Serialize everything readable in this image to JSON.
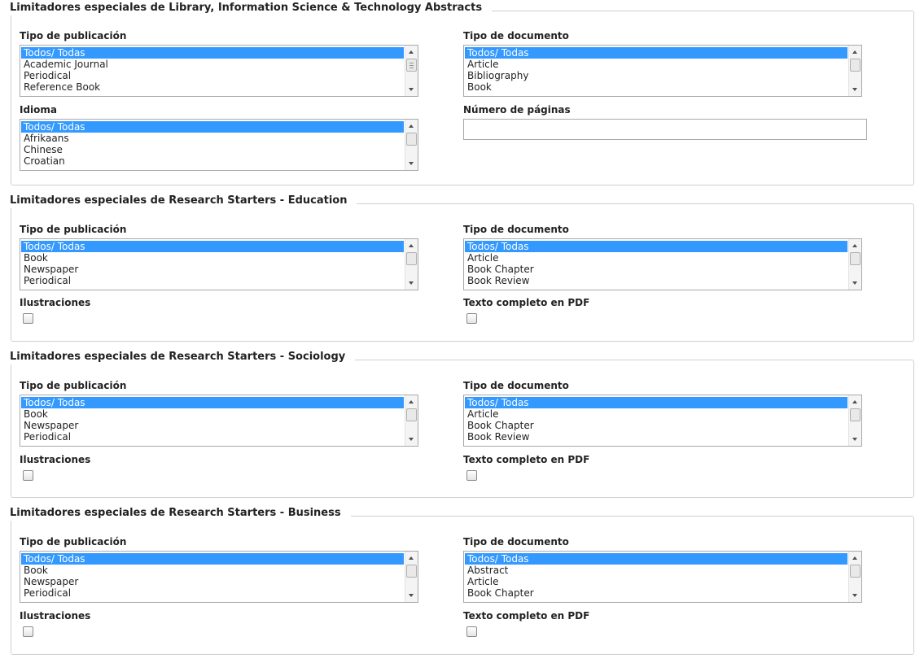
{
  "sections": [
    {
      "title": "Limitadores especiales de Library, Information Science & Technology Abstracts",
      "pub_label": "Tipo de publicación",
      "pub_options": [
        "Todos/ Todas",
        "Academic Journal",
        "Periodical",
        "Reference Book"
      ],
      "doc_label": "Tipo de documento",
      "doc_options": [
        "Todos/ Todas",
        "Article",
        "Bibliography",
        "Book"
      ],
      "lang_label": "Idioma",
      "lang_options": [
        "Todos/ Todas",
        "Afrikaans",
        "Chinese",
        "Croatian"
      ],
      "pages_label": "Número de páginas",
      "pages_value": ""
    },
    {
      "title": "Limitadores especiales de Research Starters - Education",
      "pub_label": "Tipo de publicación",
      "pub_options": [
        "Todos/ Todas",
        "Book",
        "Newspaper",
        "Periodical"
      ],
      "doc_label": "Tipo de documento",
      "doc_options": [
        "Todos/ Todas",
        "Article",
        "Book Chapter",
        "Book Review"
      ],
      "illus_label": "Ilustraciones",
      "pdf_label": "Texto completo en PDF"
    },
    {
      "title": "Limitadores especiales de Research Starters - Sociology",
      "pub_label": "Tipo de publicación",
      "pub_options": [
        "Todos/ Todas",
        "Book",
        "Newspaper",
        "Periodical"
      ],
      "doc_label": "Tipo de documento",
      "doc_options": [
        "Todos/ Todas",
        "Article",
        "Book Chapter",
        "Book Review"
      ],
      "illus_label": "Ilustraciones",
      "pdf_label": "Texto completo en PDF"
    },
    {
      "title": "Limitadores especiales de Research Starters - Business",
      "pub_label": "Tipo de publicación",
      "pub_options": [
        "Todos/ Todas",
        "Book",
        "Newspaper",
        "Periodical"
      ],
      "doc_label": "Tipo de documento",
      "doc_options": [
        "Todos/ Todas",
        "Abstract",
        "Article",
        "Book Chapter"
      ],
      "illus_label": "Ilustraciones",
      "pdf_label": "Texto completo en PDF"
    }
  ],
  "colors": {
    "selection": "#3399ff",
    "border": "#cfcfcf",
    "listbox_border": "#a9a9a9"
  },
  "icons": {
    "scroll_up": "chevron-up-icon",
    "scroll_down": "chevron-down-icon"
  }
}
